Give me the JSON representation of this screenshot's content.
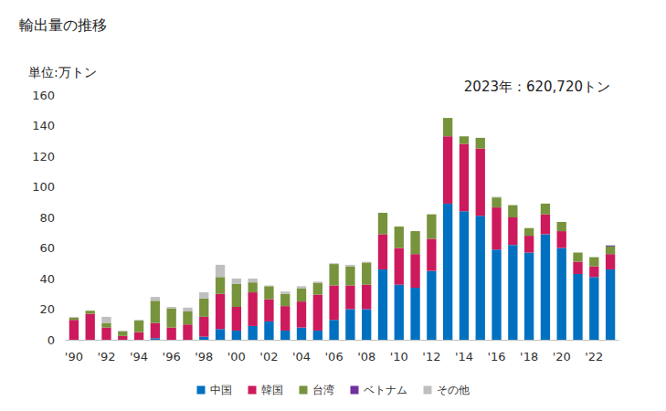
{
  "chart_data": {
    "type": "bar",
    "title": "輸出量の推移",
    "subtitle": "単位:万トン",
    "annotation": "2023年：620,720トン",
    "stacked": true,
    "grid": false,
    "legend": "bottom",
    "categories": [
      "'90",
      null,
      "'92",
      null,
      "'94",
      null,
      "'96",
      null,
      "'98",
      null,
      "'00",
      null,
      "'02",
      null,
      "'04",
      null,
      "'06",
      null,
      "'08",
      null,
      "'10",
      null,
      "'12",
      null,
      "'14",
      null,
      "'16",
      null,
      "'18",
      null,
      "'20",
      null,
      "'22",
      null
    ],
    "series": [
      {
        "name": "中国",
        "color": "#0070c0",
        "values": [
          0,
          0,
          0,
          0,
          0,
          1,
          0,
          0,
          2,
          7,
          6,
          9,
          12,
          6,
          8,
          6,
          13,
          20,
          20,
          46,
          36,
          34,
          45,
          89,
          84,
          81,
          59,
          62,
          57,
          69,
          60,
          43,
          41,
          46
        ]
      },
      {
        "name": "韓国",
        "color": "#cc1a5c",
        "values": [
          13,
          17,
          8,
          2.5,
          5,
          10,
          8,
          10,
          13,
          23,
          15.5,
          22,
          14.5,
          16,
          17,
          23.5,
          22.5,
          15.5,
          16,
          23,
          24,
          22,
          21,
          44,
          44,
          44,
          27.5,
          18,
          11,
          13,
          11,
          8,
          7,
          10
        ]
      },
      {
        "name": "台湾",
        "color": "#77933c",
        "values": [
          1.5,
          2,
          3,
          3,
          7.5,
          14.5,
          12.5,
          8.5,
          12,
          11,
          15,
          6.5,
          8.5,
          8,
          8.5,
          7.5,
          14,
          12.5,
          14.5,
          14,
          14,
          15,
          16,
          12,
          5,
          7,
          6.5,
          8,
          5,
          7,
          6,
          6,
          6,
          5
        ]
      },
      {
        "name": "ベトナム",
        "color": "#7030a0",
        "values": [
          0,
          0,
          0,
          0,
          0,
          0,
          0,
          0,
          0,
          0,
          0,
          0,
          0,
          0,
          0,
          0,
          0,
          0,
          0,
          0,
          0,
          0,
          0,
          0,
          0,
          0,
          0,
          0,
          0,
          0,
          0,
          0,
          0,
          0.5
        ]
      },
      {
        "name": "その他",
        "color": "#bfbfbf",
        "values": [
          0.5,
          0,
          4,
          0.5,
          0.5,
          2.5,
          1,
          2.5,
          4,
          8,
          3.5,
          2.5,
          0.5,
          1.5,
          1.5,
          1,
          0.5,
          1,
          0.5,
          0,
          0,
          0,
          0,
          0,
          0,
          0,
          0.5,
          0,
          0,
          0,
          0,
          0,
          0,
          0.5
        ]
      }
    ],
    "ylim": [
      0,
      160
    ],
    "yticks": [
      0,
      20,
      40,
      60,
      80,
      100,
      120,
      140,
      160
    ]
  }
}
